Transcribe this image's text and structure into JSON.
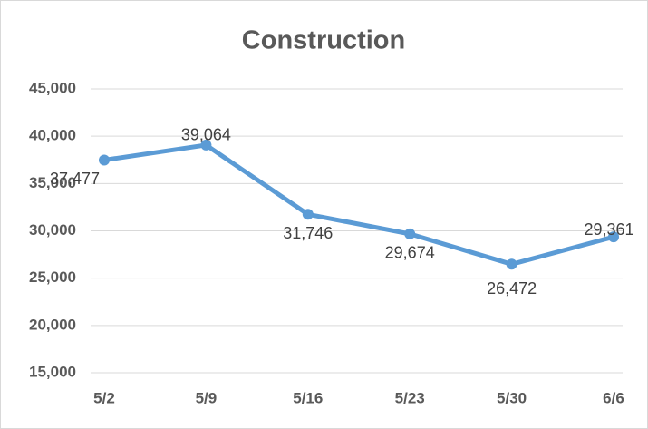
{
  "chart_data": {
    "type": "line",
    "title": "Construction",
    "categories": [
      "5/2",
      "5/9",
      "5/16",
      "5/23",
      "5/30",
      "6/6"
    ],
    "series": [
      {
        "name": "Construction",
        "color": "#5b9bd5",
        "values": [
          37477,
          39064,
          31746,
          29674,
          26472,
          29361
        ],
        "value_labels": [
          "37,477",
          "39,064",
          "31,746",
          "29,674",
          "26,472",
          "29,361"
        ]
      }
    ],
    "ylim": [
      15000,
      45000
    ],
    "yticks": [
      {
        "value": 15000,
        "label": "15,000"
      },
      {
        "value": 20000,
        "label": "20,000"
      },
      {
        "value": 25000,
        "label": "25,000"
      },
      {
        "value": 30000,
        "label": "30,000"
      },
      {
        "value": 35000,
        "label": "35,000"
      },
      {
        "value": 40000,
        "label": "40,000"
      },
      {
        "value": 45000,
        "label": "45,000"
      }
    ],
    "grid": true
  }
}
